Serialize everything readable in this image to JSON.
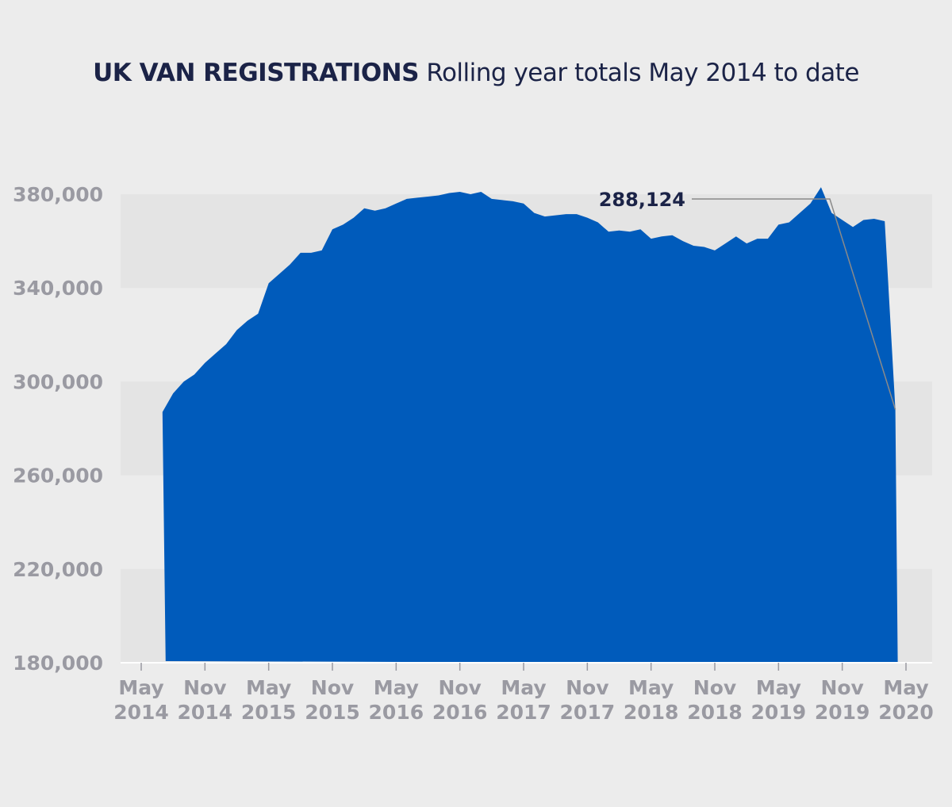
{
  "title": {
    "bold": "UK VAN REGISTRATIONS",
    "rest": "Rolling year totals May 2014 to date"
  },
  "colors": {
    "background": "#ececec",
    "band": "#e4e4e4",
    "area": "#005bbb",
    "title": "#1b2347",
    "ticks": "#9a9aa2"
  },
  "chart_data": {
    "type": "area",
    "title": "UK VAN REGISTRATIONS Rolling year totals May 2014 to date",
    "xlabel": "",
    "ylabel": "",
    "ylim": [
      180000,
      380000
    ],
    "y_ticks": [
      "380,000",
      "340,000",
      "300,000",
      "260,000",
      "220,000",
      "180,000"
    ],
    "y_tick_values": [
      380000,
      340000,
      300000,
      260000,
      220000,
      180000
    ],
    "x_ticks": [
      {
        "line1": "May",
        "line2": "2014"
      },
      {
        "line1": "Nov",
        "line2": "2014"
      },
      {
        "line1": "May",
        "line2": "2015"
      },
      {
        "line1": "Nov",
        "line2": "2015"
      },
      {
        "line1": "May",
        "line2": "2016"
      },
      {
        "line1": "Nov",
        "line2": "2016"
      },
      {
        "line1": "May",
        "line2": "2017"
      },
      {
        "line1": "Nov",
        "line2": "2017"
      },
      {
        "line1": "May",
        "line2": "2018"
      },
      {
        "line1": "Nov",
        "line2": "2018"
      },
      {
        "line1": "May",
        "line2": "2019"
      },
      {
        "line1": "Nov",
        "line2": "2019"
      },
      {
        "line1": "May",
        "line2": "2020"
      }
    ],
    "grid": "alternating horizontal bands",
    "series": [
      {
        "x": [
          "2014-07",
          "2014-08",
          "2014-09",
          "2014-10",
          "2014-11",
          "2014-12",
          "2015-01",
          "2015-02",
          "2015-03",
          "2015-04",
          "2015-05",
          "2015-06",
          "2015-07",
          "2015-08",
          "2015-09",
          "2015-10",
          "2015-11",
          "2015-12",
          "2016-01",
          "2016-02",
          "2016-03",
          "2016-04",
          "2016-05",
          "2016-06",
          "2016-07",
          "2016-08",
          "2016-09",
          "2016-10",
          "2016-11",
          "2016-12",
          "2017-01",
          "2017-02",
          "2017-03",
          "2017-04",
          "2017-05",
          "2017-06",
          "2017-07",
          "2017-08",
          "2017-09",
          "2017-10",
          "2017-11",
          "2017-12",
          "2018-01",
          "2018-02",
          "2018-03",
          "2018-04",
          "2018-05",
          "2018-06",
          "2018-07",
          "2018-08",
          "2018-09",
          "2018-10",
          "2018-11",
          "2018-12",
          "2019-01",
          "2019-02",
          "2019-03",
          "2019-04",
          "2019-05",
          "2019-06",
          "2019-07",
          "2019-08",
          "2019-09",
          "2019-10",
          "2019-11",
          "2019-12",
          "2020-01",
          "2020-02",
          "2020-03",
          "2020-04"
        ],
        "values": [
          287000,
          295000,
          300000,
          303000,
          308000,
          312000,
          316000,
          322000,
          326000,
          329000,
          342000,
          346000,
          350000,
          355000,
          355000,
          356000,
          365000,
          367000,
          370000,
          374000,
          373000,
          374000,
          376000,
          378000,
          378500,
          379000,
          379500,
          380500,
          381000,
          380000,
          381000,
          378000,
          377500,
          377000,
          376000,
          372000,
          370500,
          371000,
          371500,
          371500,
          370000,
          368000,
          364000,
          364500,
          364000,
          365000,
          361000,
          362000,
          362500,
          360000,
          358000,
          357500,
          356000,
          359000,
          362000,
          359000,
          361000,
          361000,
          367000,
          368000,
          372000,
          376000,
          383000,
          372000,
          369000,
          366000,
          369000,
          369500,
          368500,
          288124
        ]
      }
    ],
    "annotations": [
      {
        "text": "288,124",
        "x": "2020-04",
        "y": 288124
      }
    ]
  }
}
